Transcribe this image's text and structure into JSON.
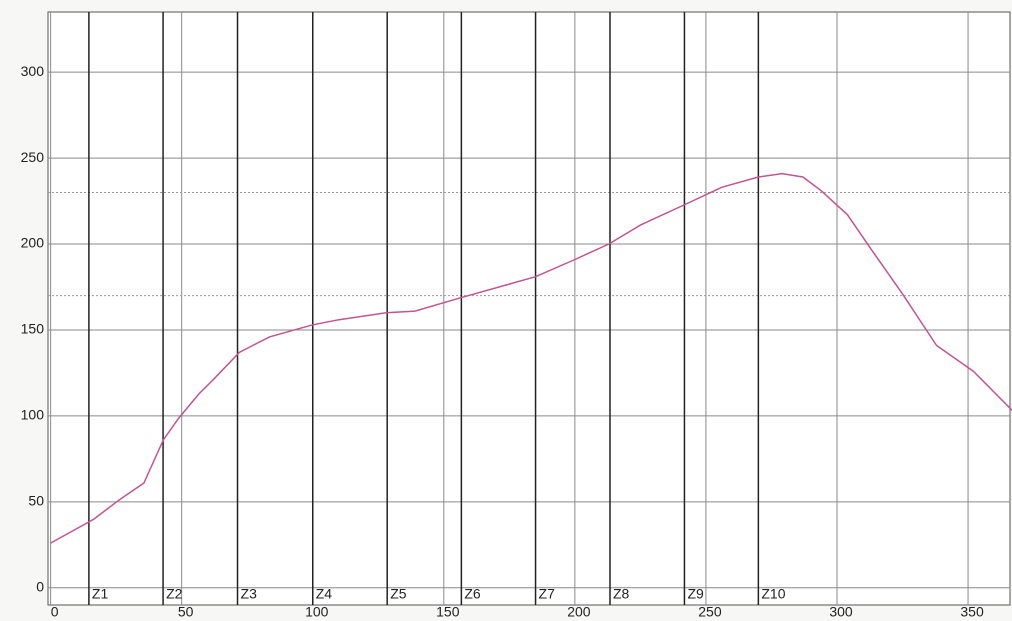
{
  "chart_data": {
    "type": "line",
    "x": [
      0,
      16.5,
      26,
      35.6,
      43,
      49,
      56.7,
      62,
      72,
      83.5,
      100,
      110,
      128,
      139,
      157,
      164,
      185,
      200,
      213,
      225,
      242,
      256,
      270,
      279,
      287,
      294,
      304,
      313,
      325,
      338,
      352,
      367
    ],
    "values": [
      26,
      40,
      51,
      61,
      86,
      99,
      113,
      121,
      137,
      146,
      153,
      156,
      160,
      161,
      169,
      172,
      181,
      191,
      200,
      211,
      223,
      233,
      239,
      241,
      239,
      231,
      217,
      197,
      171,
      141,
      126,
      103
    ],
    "color": "#c2558f",
    "xlim": [
      -1,
      366
    ],
    "ylim": [
      -10,
      335
    ],
    "xticks": [
      0,
      50,
      100,
      150,
      200,
      250,
      300,
      350
    ],
    "yticks": [
      0,
      50,
      100,
      150,
      200,
      250,
      300
    ],
    "grid": true,
    "zones": {
      "labels": [
        "Z1",
        "Z2",
        "Z3",
        "Z4",
        "Z5",
        "Z6",
        "Z7",
        "Z8",
        "Z9",
        "Z10"
      ],
      "x": [
        14.6,
        42.9,
        71.3,
        100,
        128.4,
        156.7,
        185,
        213.4,
        241.8,
        270
      ]
    },
    "thresholds": [
      230,
      170
    ]
  }
}
